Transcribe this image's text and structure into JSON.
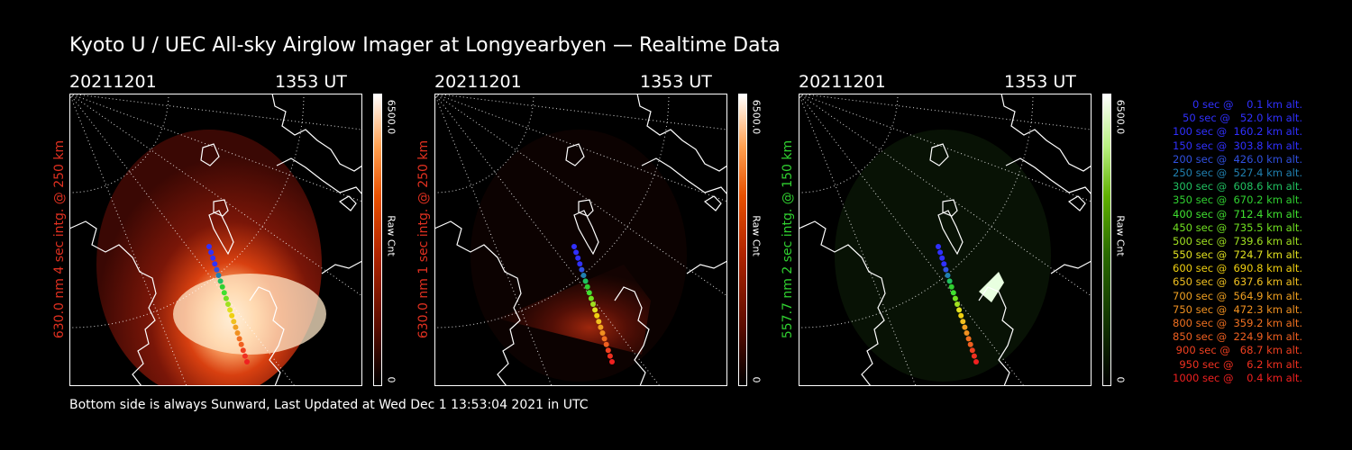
{
  "title": "Kyoto U / UEC All-sky Airglow Imager at Longyearbyen — Realtime Data",
  "footer": "Bottom side is always Sunward, Last Updated at Wed Dec  1 13:53:04 2021 in UTC",
  "colors": {
    "red_label": "#e03020",
    "green_label": "#30d030"
  },
  "panels": [
    {
      "date": "20211201",
      "time": "1353 UT",
      "ylabel": "630.0 nm 4 sec intg. @ 250 km",
      "cbar_max": "6500.0",
      "cbar_min": "0",
      "cbar_unit": "Raw Cnt",
      "colormap": "red"
    },
    {
      "date": "20211201",
      "time": "1353 UT",
      "ylabel": "630.0 nm 1 sec intg. @ 250 km",
      "cbar_max": "6500.0",
      "cbar_min": "0",
      "cbar_unit": "Raw Cnt",
      "colormap": "red"
    },
    {
      "date": "20211201",
      "time": "1353 UT",
      "ylabel": "557.7 nm 2 sec intg. @ 150 km",
      "cbar_max": "6500.0",
      "cbar_min": "0",
      "cbar_unit": "Raw Cnt",
      "colormap": "green"
    }
  ],
  "legend": [
    {
      "text": "   0 sec @    0.1 km alt.",
      "color": "#3030ff"
    },
    {
      "text": "  50 sec @   52.0 km alt.",
      "color": "#3030ff"
    },
    {
      "text": " 100 sec @  160.2 km alt.",
      "color": "#3030ff"
    },
    {
      "text": " 150 sec @  303.8 km alt.",
      "color": "#3030ff"
    },
    {
      "text": " 200 sec @  426.0 km alt.",
      "color": "#3050e0"
    },
    {
      "text": " 250 sec @  527.4 km alt.",
      "color": "#2080b0"
    },
    {
      "text": " 300 sec @  608.6 km alt.",
      "color": "#20c060"
    },
    {
      "text": " 350 sec @  670.2 km alt.",
      "color": "#30d030"
    },
    {
      "text": " 400 sec @  712.4 km alt.",
      "color": "#40e030"
    },
    {
      "text": " 450 sec @  735.5 km alt.",
      "color": "#70e020"
    },
    {
      "text": " 500 sec @  739.6 km alt.",
      "color": "#a0e020"
    },
    {
      "text": " 550 sec @  724.7 km alt.",
      "color": "#e0e020"
    },
    {
      "text": " 600 sec @  690.8 km alt.",
      "color": "#f0d010"
    },
    {
      "text": " 650 sec @  637.6 km alt.",
      "color": "#f0c020"
    },
    {
      "text": " 700 sec @  564.9 km alt.",
      "color": "#f0a020"
    },
    {
      "text": " 750 sec @  472.3 km alt.",
      "color": "#f09020"
    },
    {
      "text": " 800 sec @  359.2 km alt.",
      "color": "#f07020"
    },
    {
      "text": " 850 sec @  224.9 km alt.",
      "color": "#f06020"
    },
    {
      "text": " 900 sec @   68.7 km alt.",
      "color": "#f04020"
    },
    {
      "text": " 950 sec @    6.2 km alt.",
      "color": "#f03020"
    },
    {
      "text": "1000 sec @    0.4 km alt.",
      "color": "#f02020"
    }
  ]
}
